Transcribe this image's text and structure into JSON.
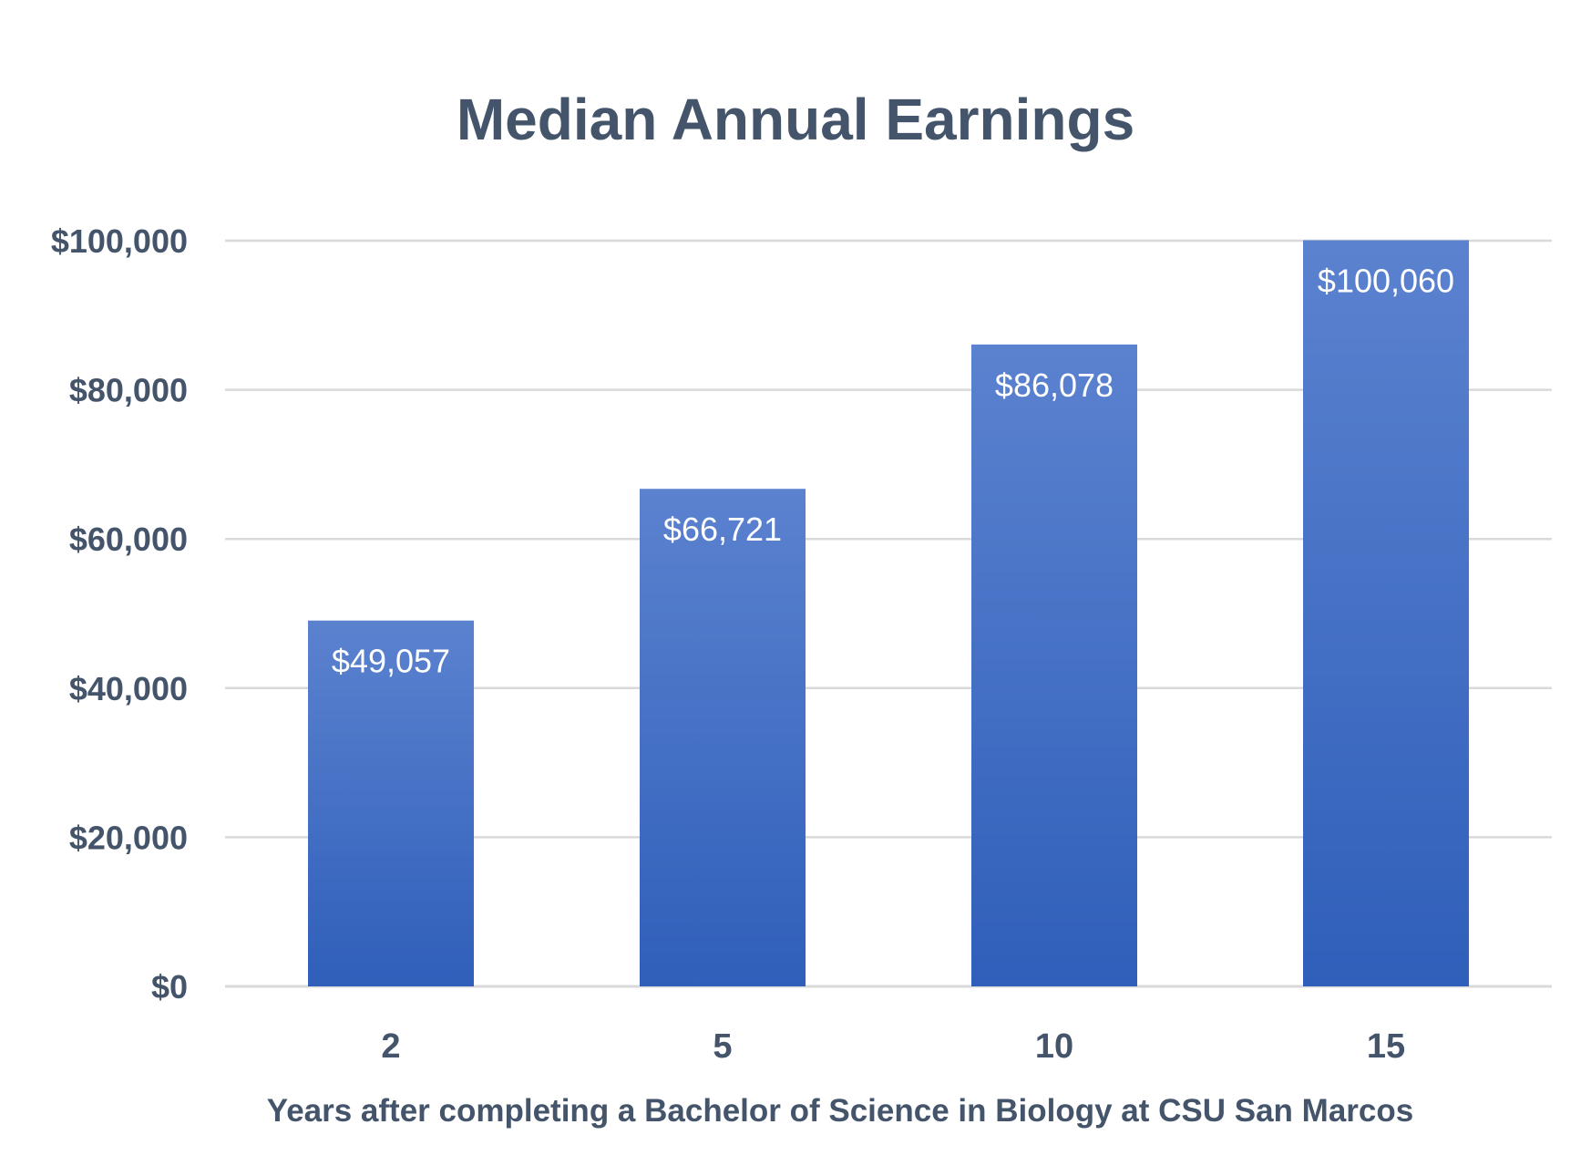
{
  "chart_data": {
    "type": "bar",
    "title": "Median Annual Earnings",
    "xlabel": "Years after completing a Bachelor of Science in Biology at CSU San Marcos",
    "ylabel": "",
    "categories": [
      "2",
      "5",
      "10",
      "15"
    ],
    "values": [
      49057,
      66721,
      86078,
      100060
    ],
    "data_labels": [
      "$49,057",
      "$66,721",
      "$86,078",
      "$100,060"
    ],
    "ylim": [
      0,
      100000
    ],
    "y_ticks": [
      0,
      20000,
      40000,
      60000,
      80000,
      100000
    ],
    "y_tick_labels": [
      "$0",
      "$20,000",
      "$40,000",
      "$60,000",
      "$80,000",
      "$100,000"
    ],
    "grid": true,
    "legend": "none",
    "colors": {
      "bar_top": "#5b82cf",
      "bar_bottom": "#2f5fba",
      "text": "#44546a",
      "gridline": "#d9d9d9",
      "data_label": "#ffffff"
    }
  }
}
